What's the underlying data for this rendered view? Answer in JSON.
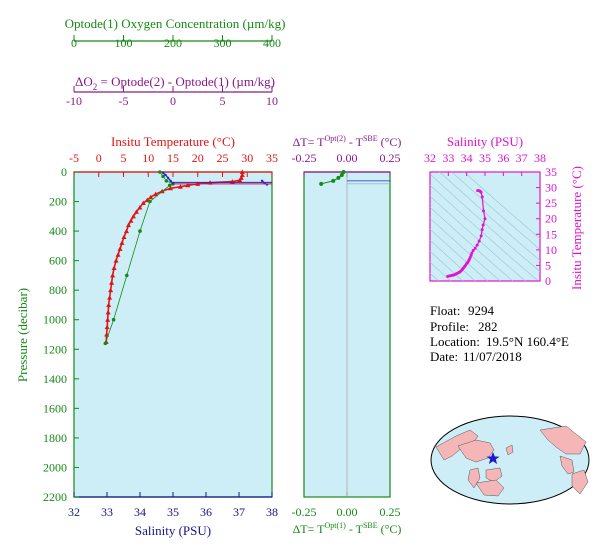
{
  "colors": {
    "green": "#168a16",
    "purple": "#8a1a8a",
    "red": "#e01414",
    "navy": "#141489",
    "magenta": "#e014d2",
    "plot_bg": "#cdeef7",
    "grid": "#9fc9d3",
    "blue": "#2222dd"
  },
  "oxygen_axis": {
    "title": "Optode(1) Oxygen Concentration (µm/kg)",
    "ticks": [
      "0",
      "100",
      "200",
      "300",
      "400"
    ]
  },
  "delta_o2_axis": {
    "title_prefix": "ΔO",
    "title_sub": "2",
    "title_rest": " = Optode(2) - Optode(1)   (µm/kg)",
    "ticks": [
      "-10",
      "-5",
      "0",
      "5",
      "10"
    ]
  },
  "main_plot": {
    "top_title": "Insitu Temperature (°C)",
    "top_ticks": [
      "-5",
      "0",
      "5",
      "10",
      "15",
      "20",
      "25",
      "30",
      "35"
    ],
    "bottom_title": "Salinity (PSU)",
    "bottom_ticks": [
      "32",
      "33",
      "34",
      "35",
      "36",
      "37",
      "38"
    ],
    "left_title": "Pressure (decibar)",
    "left_ticks": [
      "0",
      "200",
      "400",
      "600",
      "800",
      "1000",
      "1200",
      "1400",
      "1600",
      "1800",
      "2000",
      "2200"
    ]
  },
  "dt_plot": {
    "top_title_prefix": "ΔT= T",
    "top_title_sup1": "Opt(2)",
    "top_title_mid": " - T",
    "top_title_sup2": "SBE",
    "top_title_end": " (°C)",
    "bottom_title_prefix": "ΔT= T",
    "bottom_title_sup1": "Opt(1)",
    "bottom_title_mid": " - T",
    "bottom_title_sup2": "SBE",
    "bottom_title_end": " (°C)",
    "ticks": [
      "-0.25",
      "0.00",
      "0.25"
    ]
  },
  "ts_plot": {
    "top_title": "Salinity (PSU)",
    "top_ticks": [
      "32",
      "33",
      "34",
      "35",
      "36",
      "37",
      "38"
    ],
    "right_title": "Insitu Temperature (°C)",
    "right_ticks": [
      "0",
      "5",
      "10",
      "15",
      "20",
      "25",
      "30",
      "35"
    ]
  },
  "info": {
    "float_label": "Float:",
    "float_value": "9294",
    "profile_label": "Profile:",
    "profile_value": "282",
    "location_label": "Location:",
    "location_value": "19.5°N  160.4°E",
    "date_label": "Date:",
    "date_value": "11/07/2018"
  },
  "chart_data": {
    "type": "line",
    "y_axis": {
      "label": "Pressure (decibar)",
      "range": [
        0,
        2200
      ],
      "inverted": true
    },
    "x_axes": {
      "temperature": {
        "label": "Insitu Temperature (°C)",
        "range": [
          -5,
          35
        ]
      },
      "salinity": {
        "label": "Salinity (PSU)",
        "range": [
          32,
          38
        ]
      },
      "oxygen": {
        "label": "Optode(1) Oxygen Concentration (µm/kg)",
        "range": [
          0,
          400
        ]
      },
      "delta_o2": {
        "label": "ΔO2 = Optode(2) - Optode(1) (µm/kg)",
        "range": [
          -10,
          10
        ]
      },
      "delta_t": {
        "range": [
          -0.25,
          0.25
        ]
      }
    },
    "series": [
      {
        "name": "Insitu Temperature (°C)",
        "axis": "temperature",
        "points": [
          [
            29.0,
            0
          ],
          [
            29.0,
            20
          ],
          [
            28.8,
            40
          ],
          [
            28.5,
            55
          ],
          [
            27.0,
            65
          ],
          [
            22.5,
            72
          ],
          [
            20.0,
            80
          ],
          [
            18.0,
            90
          ],
          [
            16.5,
            100
          ],
          [
            14.5,
            110
          ],
          [
            12.8,
            130
          ],
          [
            11.5,
            150
          ],
          [
            10.5,
            170
          ],
          [
            9.8,
            190
          ],
          [
            9.0,
            210
          ],
          [
            8.3,
            240
          ],
          [
            7.6,
            270
          ],
          [
            7.0,
            300
          ],
          [
            6.5,
            330
          ],
          [
            6.0,
            360
          ],
          [
            5.6,
            400
          ],
          [
            5.1,
            440
          ],
          [
            4.7,
            480
          ],
          [
            4.3,
            520
          ],
          [
            3.9,
            560
          ],
          [
            3.5,
            600
          ],
          [
            3.1,
            650
          ],
          [
            2.8,
            700
          ],
          [
            2.6,
            750
          ],
          [
            2.4,
            800
          ],
          [
            2.2,
            850
          ],
          [
            2.0,
            900
          ],
          [
            1.9,
            950
          ],
          [
            1.8,
            1000
          ],
          [
            1.7,
            1050
          ],
          [
            1.6,
            1100
          ],
          [
            1.5,
            1150
          ]
        ]
      },
      {
        "name": "Salinity (PSU)",
        "axis": "salinity",
        "points": [
          [
            34.6,
            0
          ],
          [
            34.7,
            30
          ],
          [
            34.8,
            60
          ],
          [
            35.0,
            80
          ],
          [
            34.9,
            90
          ],
          [
            34.3,
            200
          ],
          [
            34.0,
            400
          ],
          [
            33.6,
            700
          ],
          [
            33.2,
            1000
          ],
          [
            32.95,
            1160
          ]
        ]
      },
      {
        "name": "Optode(1) Oxygen Concentration (µm/kg)",
        "axis": "oxygen",
        "points": [
          [
            180,
            5
          ],
          [
            185,
            20
          ],
          [
            190,
            40
          ],
          [
            195,
            60
          ],
          [
            200,
            75
          ],
          [
            380,
            60
          ],
          [
            385,
            75
          ],
          [
            390,
            85
          ]
        ]
      },
      {
        "name": "ΔT Opt(1) - SBE (°C)",
        "axis": "delta_t",
        "points": [
          [
            -0.02,
            0
          ],
          [
            -0.03,
            20
          ],
          [
            -0.05,
            40
          ],
          [
            -0.08,
            60
          ],
          [
            -0.15,
            80
          ]
        ]
      }
    ]
  }
}
